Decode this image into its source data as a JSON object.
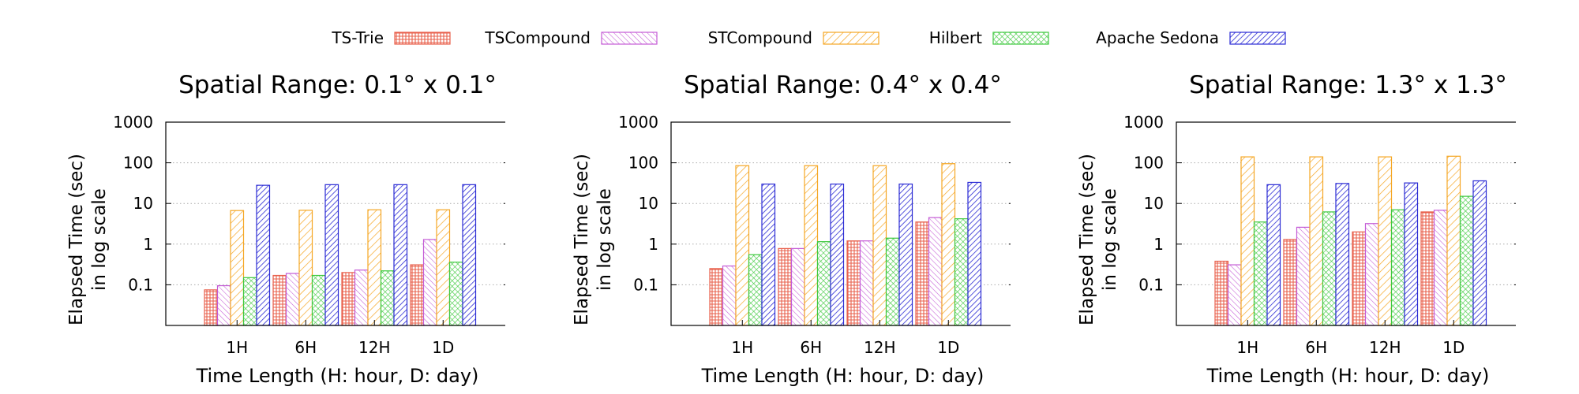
{
  "chart_data": [
    {
      "type": "bar",
      "title": "Spatial Range: 0.1° x 0.1°",
      "xlabel": "Time Length (H: hour, D: day)",
      "ylabel_line1": "Elapsed Time (sec)",
      "ylabel_line2": "in log scale",
      "y_scale": "log",
      "ylim": [
        0.01,
        1000
      ],
      "yticks": [
        "0.1",
        "1",
        "10",
        "100",
        "1000"
      ],
      "grid": "horizontal dotted",
      "categories": [
        "1H",
        "6H",
        "12H",
        "1D"
      ],
      "series": [
        {
          "name": "TS-Trie",
          "values": [
            0.075,
            0.17,
            0.2,
            0.31
          ]
        },
        {
          "name": "TSCompound",
          "values": [
            0.095,
            0.19,
            0.23,
            1.3
          ]
        },
        {
          "name": "STCompound",
          "values": [
            6.7,
            6.8,
            7.0,
            7.0
          ]
        },
        {
          "name": "Hilbert",
          "values": [
            0.15,
            0.17,
            0.22,
            0.36
          ]
        },
        {
          "name": "Apache Sedona",
          "values": [
            28,
            29,
            29,
            29
          ]
        }
      ]
    },
    {
      "type": "bar",
      "title": "Spatial Range: 0.4° x 0.4°",
      "xlabel": "Time Length (H: hour, D: day)",
      "ylabel_line1": "Elapsed Time (sec)",
      "ylabel_line2": "in log scale",
      "y_scale": "log",
      "ylim": [
        0.01,
        1000
      ],
      "yticks": [
        "0.1",
        "1",
        "10",
        "100",
        "1000"
      ],
      "grid": "horizontal dotted",
      "categories": [
        "1H",
        "6H",
        "12H",
        "1D"
      ],
      "series": [
        {
          "name": "TS-Trie",
          "values": [
            0.25,
            0.78,
            1.2,
            3.5
          ]
        },
        {
          "name": "TSCompound",
          "values": [
            0.29,
            0.78,
            1.2,
            4.5
          ]
        },
        {
          "name": "STCompound",
          "values": [
            85,
            85,
            85,
            95
          ]
        },
        {
          "name": "Hilbert",
          "values": [
            0.55,
            1.15,
            1.4,
            4.2
          ]
        },
        {
          "name": "Apache Sedona",
          "values": [
            30,
            30,
            30,
            33
          ]
        }
      ]
    },
    {
      "type": "bar",
      "title": "Spatial Range: 1.3° x 1.3°",
      "xlabel": "Time Length (H: hour, D: day)",
      "ylabel_line1": "Elapsed Time (sec)",
      "ylabel_line2": "in log scale",
      "y_scale": "log",
      "ylim": [
        0.01,
        1000
      ],
      "yticks": [
        "0.1",
        "1",
        "10",
        "100",
        "1000"
      ],
      "grid": "horizontal dotted",
      "categories": [
        "1H",
        "6H",
        "12H",
        "1D"
      ],
      "series": [
        {
          "name": "TS-Trie",
          "values": [
            0.38,
            1.3,
            2.0,
            6.2
          ]
        },
        {
          "name": "TSCompound",
          "values": [
            0.31,
            2.6,
            3.2,
            6.8
          ]
        },
        {
          "name": "STCompound",
          "values": [
            140,
            140,
            140,
            145
          ]
        },
        {
          "name": "Hilbert",
          "values": [
            3.5,
            6.2,
            7.0,
            15
          ]
        },
        {
          "name": "Apache Sedona",
          "values": [
            29,
            31,
            32,
            36
          ]
        }
      ]
    }
  ],
  "legend": {
    "placement": "top",
    "entries": [
      {
        "name": "TS-Trie",
        "color": "#e8604c",
        "pattern": "crosshatch"
      },
      {
        "name": "TSCompound",
        "color": "#c45bd6",
        "pattern": "diagonal-back"
      },
      {
        "name": "STCompound",
        "color": "#f5a623",
        "pattern": "diagonal-forward"
      },
      {
        "name": "Hilbert",
        "color": "#3ec93e",
        "pattern": "diamond-grid"
      },
      {
        "name": "Apache Sedona",
        "color": "#2a2ad4",
        "pattern": "diagonal-forward-dense"
      }
    ]
  }
}
